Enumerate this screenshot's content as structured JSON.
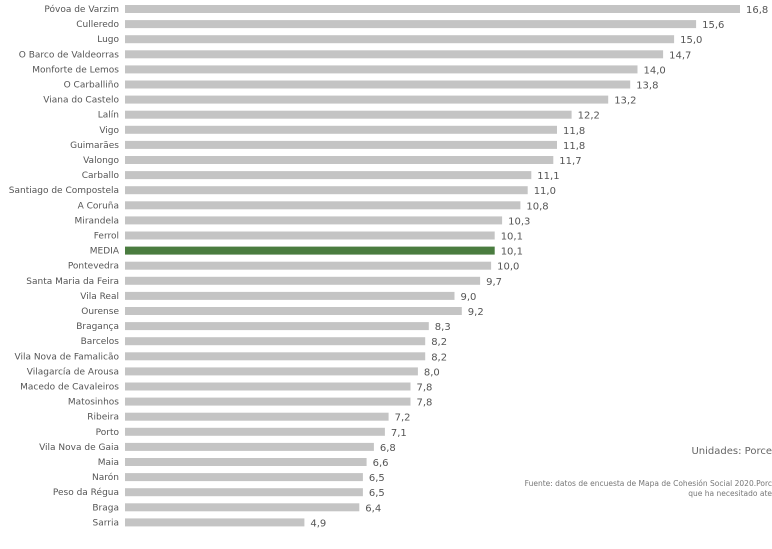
{
  "chart_data": {
    "type": "bar",
    "orientation": "horizontal",
    "categories": [
      "Póvoa de Varzim",
      "Culleredo",
      "Lugo",
      "O Barco de Valdeorras",
      "Monforte de Lemos",
      "O Carballiño",
      "Viana do Castelo",
      "Lalín",
      "Vigo",
      "Guimarães",
      "Valongo",
      "Carballo",
      "Santiago de Compostela",
      "A Coruña",
      "Mirandela",
      "Ferrol",
      "MEDIA",
      "Pontevedra",
      "Santa Maria da Feira",
      "Vila Real",
      "Ourense",
      "Bragança",
      "Barcelos",
      "Vila Nova de Famalicão",
      "Vilagarcía de Arousa",
      "Macedo de Cavaleiros",
      "Matosinhos",
      "Ribeira",
      "Porto",
      "Vila Nova de Gaia",
      "Maia",
      "Narón",
      "Peso da Régua",
      "Braga",
      "Sarria"
    ],
    "values": [
      16.8,
      15.6,
      15.0,
      14.7,
      14.0,
      13.8,
      13.2,
      12.2,
      11.8,
      11.8,
      11.7,
      11.1,
      11.0,
      10.8,
      10.3,
      10.1,
      10.1,
      10.0,
      9.7,
      9.0,
      9.2,
      8.3,
      8.2,
      8.2,
      8.0,
      7.8,
      7.8,
      7.2,
      7.1,
      6.8,
      6.6,
      6.5,
      6.5,
      6.4,
      4.9
    ],
    "value_labels": [
      "16,8",
      "15,6",
      "15,0",
      "14,7",
      "14,0",
      "13,8",
      "13,2",
      "12,2",
      "11,8",
      "11,8",
      "11,7",
      "11,1",
      "11,0",
      "10,8",
      "10,3",
      "10,1",
      "10,1",
      "10,0",
      "9,7",
      "9,0",
      "9,2",
      "8,3",
      "8,2",
      "8,2",
      "8,0",
      "7,8",
      "7,8",
      "7,2",
      "7,1",
      "6,8",
      "6,6",
      "6,5",
      "6,5",
      "6,4",
      "4,9"
    ],
    "highlight_category": "MEDIA",
    "xlim": [
      0,
      16.8
    ],
    "grid": false,
    "colors": {
      "bar": "#c4c4c4",
      "highlight": "#4a7c3f",
      "highlight_label": "#c9e0c2",
      "label": "#555555"
    }
  },
  "notes": {
    "units": "Unidades: Porce",
    "source_line1": "Fuente: datos de encuesta de Mapa de Cohesión Social 2020.Porc",
    "source_line2": "que ha necesitado ate"
  }
}
